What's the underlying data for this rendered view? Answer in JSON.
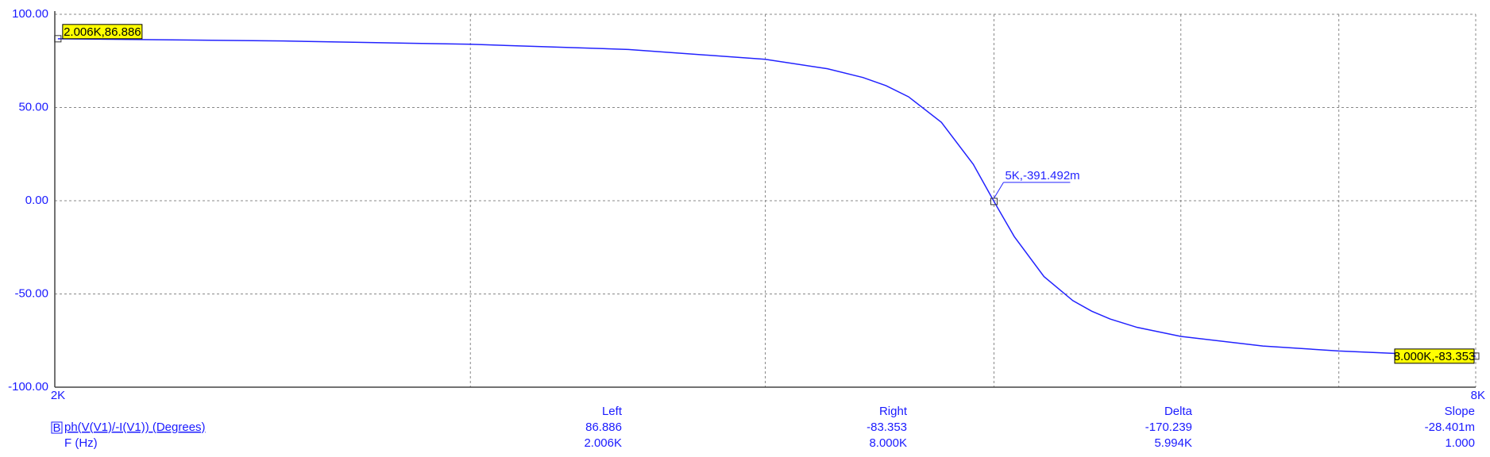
{
  "chart_data": {
    "type": "line",
    "x_scale": "log",
    "xlim": [
      2000,
      8000
    ],
    "xticks": [
      {
        "value": 2000,
        "label": "2K"
      },
      {
        "value": 3000,
        "label": null
      },
      {
        "value": 4000,
        "label": null
      },
      {
        "value": 5000,
        "label": null
      },
      {
        "value": 6000,
        "label": null
      },
      {
        "value": 7000,
        "label": null
      },
      {
        "value": 8000,
        "label": "8K"
      }
    ],
    "ylim": [
      -100,
      100
    ],
    "yticks": [
      {
        "value": -100,
        "label": "-100.00"
      },
      {
        "value": -50,
        "label": "-50.00"
      },
      {
        "value": 0,
        "label": "0.00"
      },
      {
        "value": 50,
        "label": "50.00"
      },
      {
        "value": 100,
        "label": "100.00"
      }
    ],
    "grid": true,
    "axis_color": "#1a1aff",
    "series": [
      {
        "name": "ph(V(V1)/-I(V1)) (Degrees)",
        "color": "#2222ff",
        "x": [
          2006,
          2500,
          3000,
          3500,
          4000,
          4250,
          4400,
          4500,
          4600,
          4750,
          4900,
          5000,
          5100,
          5250,
          5400,
          5500,
          5600,
          5750,
          6000,
          6500,
          7000,
          7500,
          8000
        ],
        "values": [
          86.886,
          85.67,
          83.92,
          81.14,
          75.83,
          70.81,
          66.1,
          61.71,
          55.76,
          42.08,
          19.57,
          -0.391,
          -19.22,
          -40.66,
          -53.58,
          -59.24,
          -63.42,
          -67.94,
          -72.78,
          -77.92,
          -80.59,
          -82.23,
          -83.353
        ]
      }
    ],
    "annotations": [
      {
        "x": 2006,
        "y": 86.886,
        "label": "2.006K,86.886",
        "style": "boxed"
      },
      {
        "x": 5000,
        "y": -0.391,
        "label": "5K,-391.492m",
        "style": "leader"
      },
      {
        "x": 8000,
        "y": -83.353,
        "label": "8.000K,-83.353",
        "style": "boxed"
      }
    ],
    "cursor_table": {
      "icon": "B",
      "columns": [
        "Left",
        "Right",
        "Delta",
        "Slope"
      ],
      "rows": [
        {
          "values": [
            "86.886",
            "-83.353",
            "-170.239",
            "-28.401m"
          ]
        },
        {
          "label": "F (Hz)",
          "values": [
            "2.006K",
            "8.000K",
            "5.994K",
            "1.000"
          ]
        }
      ]
    }
  }
}
